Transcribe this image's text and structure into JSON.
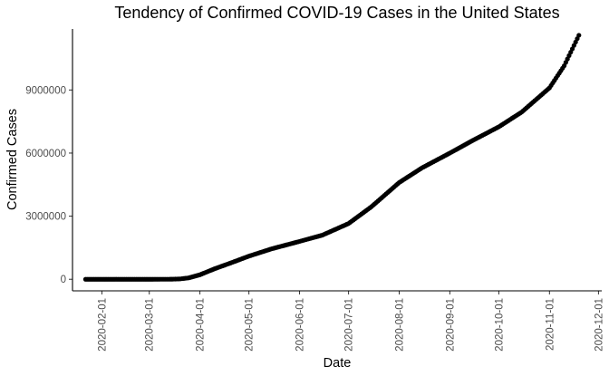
{
  "chart_data": {
    "type": "scatter",
    "title": "Tendency of Confirmed COVID-19 Cases in the United States",
    "xlabel": "Date",
    "ylabel": "Confirmed Cases",
    "x_ticks": [
      "2020-02-01",
      "2020-03-01",
      "2020-04-01",
      "2020-05-01",
      "2020-06-01",
      "2020-07-01",
      "2020-08-01",
      "2020-09-01",
      "2020-10-01",
      "2020-11-01",
      "2020-12-01"
    ],
    "y_ticks": [
      0,
      3000000,
      6000000,
      9000000
    ],
    "y_tick_labels": [
      "0",
      "3000000",
      "6000000",
      "9000000"
    ],
    "xlim": [
      "2020-01-14",
      "2020-12-03"
    ],
    "ylim": [
      -550000,
      11900000
    ],
    "grid": false,
    "legend": "none",
    "marker_color": "#000000",
    "series": [
      {
        "x_start": "2020-01-22",
        "x_end": "2020-11-19",
        "points": [
          [
            "2020-01-22",
            1
          ],
          [
            "2020-02-15",
            15
          ],
          [
            "2020-03-01",
            70
          ],
          [
            "2020-03-10",
            1000
          ],
          [
            "2020-03-15",
            3500
          ],
          [
            "2020-03-20",
            19000
          ],
          [
            "2020-03-25",
            65000
          ],
          [
            "2020-04-01",
            215000
          ],
          [
            "2020-04-10",
            500000
          ],
          [
            "2020-04-20",
            780000
          ],
          [
            "2020-05-01",
            1100000
          ],
          [
            "2020-05-15",
            1450000
          ],
          [
            "2020-06-01",
            1800000
          ],
          [
            "2020-06-15",
            2100000
          ],
          [
            "2020-07-01",
            2650000
          ],
          [
            "2020-07-15",
            3450000
          ],
          [
            "2020-08-01",
            4600000
          ],
          [
            "2020-08-15",
            5300000
          ],
          [
            "2020-09-01",
            6000000
          ],
          [
            "2020-09-15",
            6600000
          ],
          [
            "2020-10-01",
            7250000
          ],
          [
            "2020-10-15",
            7950000
          ],
          [
            "2020-11-01",
            9100000
          ],
          [
            "2020-11-10",
            10150000
          ],
          [
            "2020-11-19",
            11600000
          ]
        ]
      }
    ]
  }
}
